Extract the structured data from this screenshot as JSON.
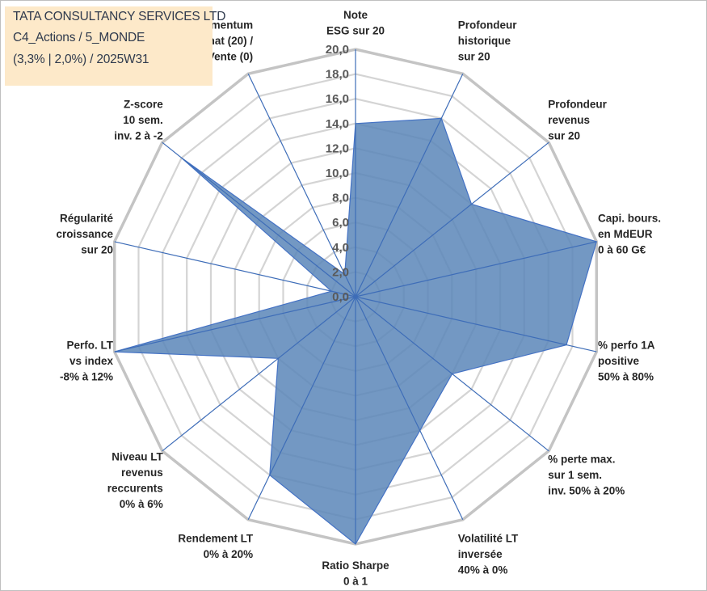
{
  "header": {
    "line1": "TATA CONSULTANCY SERVICES LTD",
    "line2": "C4_Actions / 5_MONDE",
    "line3": "(3,3% | 2,0%) / 2025W31"
  },
  "chart_data": {
    "type": "radar",
    "rmin": 0,
    "rmax": 20,
    "ticks": [
      "0,0",
      "2,0",
      "4,0",
      "6,0",
      "8,0",
      "10,0",
      "12,0",
      "14,0",
      "16,0",
      "18,0",
      "20,0"
    ],
    "grid": true,
    "series": [
      {
        "values": [
          14,
          16,
          12,
          20,
          17.5,
          10,
          12,
          20,
          16,
          8,
          20,
          2,
          18,
          2
        ]
      }
    ],
    "axes": [
      [
        "Note",
        "ESG sur 20"
      ],
      [
        "Profondeur",
        "historique",
        "sur 20"
      ],
      [
        "Profondeur",
        "revenus",
        "sur 20"
      ],
      [
        "Capi. bours.",
        "en MdEUR",
        "0 à 60 G€"
      ],
      [
        "% perfo 1A",
        "positive",
        "50% à 80%"
      ],
      [
        "% perte max.",
        "sur 1 sem.",
        "inv. 50% à 20%"
      ],
      [
        "Volatilité LT",
        "inversée",
        "40% à 0%"
      ],
      [
        "Ratio Sharpe",
        "0 à 1"
      ],
      [
        "Rendement LT",
        "0% à 20%"
      ],
      [
        "Niveau LT",
        "revenus",
        "reccurents",
        "0% à 6%"
      ],
      [
        "Perfo. LT",
        "vs index",
        "-8% à 12%"
      ],
      [
        "Régularité",
        "croissance",
        "sur 20"
      ],
      [
        "Z-score",
        "10 sem.",
        "inv. 2 à -2"
      ],
      [
        "Momentum",
        "Achat (20) /",
        "Vente (0)"
      ]
    ],
    "colors": {
      "fill": "#5b86b9",
      "stroke": "#4472c4",
      "grid": "#d4d4d4"
    }
  }
}
